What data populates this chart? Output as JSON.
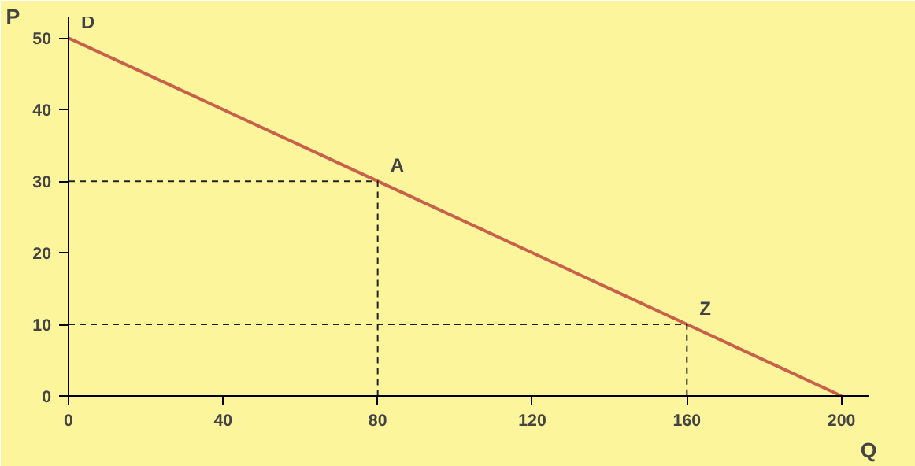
{
  "chart_data": {
    "type": "line",
    "xlabel": "Q",
    "ylabel": "P",
    "x": [
      0,
      80,
      160,
      200
    ],
    "series": [
      {
        "color": "#c8604a",
        "values": [
          50,
          30,
          10,
          0
        ]
      },
      {
        "type": "line",
        "color": "#222222",
        "line_style": "dashed",
        "x": [
          0,
          80,
          80
        ],
        "values": [
          30,
          30,
          0
        ]
      },
      {
        "type": "line",
        "color": "#222222",
        "line_style": "dashed",
        "x": [
          0,
          160,
          160
        ],
        "values": [
          10,
          10,
          0
        ]
      }
    ],
    "annotations": [
      {
        "text": "D",
        "x": 0,
        "y": 50
      },
      {
        "text": "A",
        "x": 80,
        "y": 30
      },
      {
        "text": "Z",
        "x": 160,
        "y": 10
      }
    ],
    "xlim": [
      0,
      207
    ],
    "ylim": [
      0,
      53
    ],
    "xticks": [
      0,
      40,
      80,
      120,
      160,
      200
    ],
    "yticks": [
      0,
      10,
      20,
      30,
      40,
      50
    ],
    "grid": false,
    "marker": "none",
    "line_style": "solid"
  }
}
